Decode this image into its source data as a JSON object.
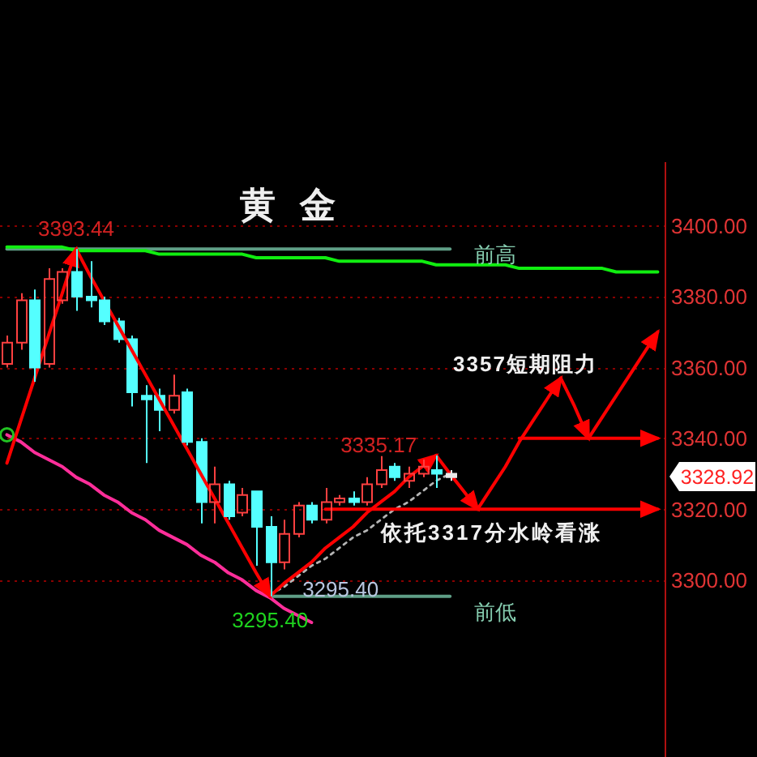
{
  "chart_data": {
    "type": "candlestick",
    "title": "黄金",
    "categories": [
      null,
      null,
      null,
      null,
      null,
      null,
      null,
      null,
      null,
      null,
      null,
      null,
      null,
      null,
      null,
      null,
      null,
      null,
      null,
      null,
      null,
      null,
      null,
      null,
      null,
      null,
      null,
      null,
      null,
      null,
      null,
      null,
      null,
      null,
      null,
      null,
      null,
      null,
      null,
      null,
      null,
      null,
      null,
      null,
      null,
      null,
      null,
      null
    ],
    "ohlc": [
      [
        3361,
        3369,
        3360,
        3367
      ],
      [
        3367,
        3381,
        3365,
        3379
      ],
      [
        3379,
        3382,
        3356,
        3360
      ],
      [
        3361,
        3388,
        3360,
        3385
      ],
      [
        3379,
        3388,
        3378,
        3387
      ],
      [
        3387,
        3393.44,
        3376,
        3380
      ],
      [
        3380,
        3390,
        3377,
        3379
      ],
      [
        3379,
        3380,
        3372,
        3373
      ],
      [
        3373,
        3374,
        3367,
        3368
      ],
      [
        3368,
        3369,
        3349,
        3353
      ],
      [
        3352,
        3355,
        3333,
        3351
      ],
      [
        3352,
        3354,
        3342,
        3348
      ],
      [
        3348,
        3358,
        3347,
        3352
      ],
      [
        3353,
        3354,
        3338,
        3339
      ],
      [
        3339,
        3340,
        3316,
        3322
      ],
      [
        3322,
        3332,
        3316,
        3327
      ],
      [
        3327,
        3328,
        3317,
        3318
      ],
      [
        3319,
        3326,
        3318,
        3324
      ],
      [
        3325,
        3325,
        3304,
        3315
      ],
      [
        3315,
        3318,
        3295.4,
        3305
      ],
      [
        3305,
        3317,
        3303,
        3313
      ],
      [
        3313,
        3322,
        3312,
        3321
      ],
      [
        3321,
        3322,
        3316,
        3317
      ],
      [
        3317,
        3326,
        3316,
        3322
      ],
      [
        3322,
        3324,
        3321,
        3323
      ],
      [
        3323,
        3325,
        3321,
        3322
      ],
      [
        3322,
        3329,
        3321,
        3327
      ],
      [
        3327,
        3335,
        3326,
        3331
      ],
      [
        3332,
        3333,
        3328,
        3329
      ],
      [
        3328,
        3332,
        3326,
        3330
      ],
      [
        3330,
        3334,
        3329,
        3332
      ],
      [
        3331,
        3335.17,
        3326,
        3330
      ],
      [
        3330,
        3331,
        3328,
        3329
      ],
      null,
      null,
      null,
      null,
      null,
      null,
      null,
      null,
      null,
      null,
      null,
      null,
      null,
      null,
      null
    ],
    "colors": [
      "#ff4040",
      "#ff4040",
      "#54ffff",
      "#ff4040",
      "#ff4040",
      "#54ffff",
      "#54ffff",
      "#54ffff",
      "#54ffff",
      "#54ffff",
      "#54ffff",
      "#54ffff",
      "#ff4040",
      "#54ffff",
      "#54ffff",
      "#ff4040",
      "#54ffff",
      "#ff4040",
      "#54ffff",
      "#54ffff",
      "#ff4040",
      "#ff4040",
      "#54ffff",
      "#ff4040",
      "#ff4040",
      "#54ffff",
      "#ff4040",
      "#ff4040",
      "#54ffff",
      "#ff4040",
      "#ff4040",
      "#54ffff",
      "#e8e8e8",
      null,
      null,
      null,
      null,
      null,
      null,
      null,
      null,
      null,
      null,
      null,
      null,
      null,
      null,
      null
    ],
    "series": [
      {
        "name": "前高",
        "type": "line",
        "color": "#5f9e86",
        "values": [
          3393.44,
          3393.44,
          3393.44,
          3393.44,
          3393.44,
          3393.44,
          3393.44,
          3393.44,
          3393.44,
          3393.44,
          3393.44,
          3393.44,
          3393.44,
          3393.44,
          3393.44,
          3393.44,
          3393.44,
          3393.44,
          3393.44,
          3393.44,
          3393.44,
          3393.44,
          3393.44,
          3393.44,
          3393.44,
          3393.44,
          3393.44,
          3393.44,
          3393.44,
          3393.44,
          3393.44,
          3393.44,
          3393.44,
          null,
          null,
          null,
          null,
          null,
          null,
          null,
          null,
          null,
          null,
          null,
          null,
          null,
          null,
          null
        ]
      },
      {
        "name": "前低",
        "type": "line",
        "color": "#5f9e86",
        "values": [
          null,
          null,
          null,
          null,
          null,
          null,
          null,
          null,
          null,
          null,
          null,
          null,
          null,
          null,
          null,
          null,
          null,
          null,
          null,
          3295.4,
          3295.4,
          3295.4,
          3295.4,
          3295.4,
          3295.4,
          3295.4,
          3295.4,
          3295.4,
          3295.4,
          3295.4,
          3295.4,
          3295.4,
          3295.4,
          null,
          null,
          null,
          null,
          null,
          null,
          null,
          null,
          null,
          null,
          null,
          null,
          null,
          null,
          null
        ]
      },
      {
        "type": "line",
        "color": "#10ee10",
        "values": [
          3394,
          3394,
          3394,
          3394,
          3394,
          3393,
          3393,
          3393,
          3393,
          3393,
          3393,
          3392,
          3392,
          3392,
          3392,
          3392,
          3392,
          3392,
          3391,
          3391,
          3391,
          3391,
          3391,
          3391,
          3390,
          3390,
          3390,
          3390,
          3390,
          3390,
          3390,
          3389,
          3389,
          3389,
          3389,
          3389,
          3389,
          3388,
          3388,
          3388,
          3388,
          3388,
          3388,
          3388,
          3387,
          3387,
          3387,
          3387
        ]
      },
      {
        "type": "line",
        "color": "#ff2e9a",
        "values": [
          3341,
          3339,
          3336,
          3334,
          3332,
          3329,
          3327,
          3324,
          3322,
          3319,
          3317,
          3314,
          3312,
          3310,
          3307,
          3305,
          3302,
          3300,
          3297,
          3295,
          3292,
          3290,
          3288,
          null,
          null,
          null,
          null,
          null,
          null,
          null,
          null,
          null,
          null,
          null,
          null,
          null,
          null,
          null,
          null,
          null,
          null,
          null,
          null,
          null,
          null,
          null,
          null,
          null
        ]
      },
      {
        "type": "line",
        "color": "#b4b4b4",
        "line_style": "dotted",
        "values": [
          null,
          null,
          null,
          null,
          null,
          null,
          null,
          null,
          null,
          null,
          null,
          null,
          null,
          null,
          null,
          null,
          null,
          null,
          null,
          3296,
          3298,
          3301,
          3304,
          3306,
          3309,
          3312,
          3314,
          3317,
          3320,
          3322,
          3325,
          3328,
          3330,
          null,
          null,
          null,
          null,
          null,
          null,
          null,
          null,
          null,
          null,
          null,
          null,
          null,
          null,
          null
        ]
      },
      {
        "type": "line",
        "color": "#ff0000",
        "values": [
          3333,
          3345,
          3357,
          3369,
          3381,
          3393.44,
          null,
          null,
          null,
          null,
          null,
          null,
          null,
          null,
          null,
          null,
          null,
          null,
          null,
          null,
          null,
          null,
          null,
          null,
          null,
          null,
          null,
          null,
          null,
          null,
          null,
          null,
          null,
          null,
          null,
          null,
          null,
          null,
          null,
          null,
          null,
          null,
          null,
          null,
          null,
          null,
          null,
          null
        ]
      },
      {
        "type": "line",
        "color": "#ff0000",
        "values": [
          null,
          null,
          null,
          null,
          null,
          3393.44,
          3386,
          3379,
          3372,
          3365,
          3358,
          3351,
          3344,
          3337,
          3330,
          3323,
          3316,
          3309,
          3302,
          3295.4,
          null,
          null,
          null,
          null,
          null,
          null,
          null,
          null,
          null,
          null,
          null,
          null,
          null,
          null,
          null,
          null,
          null,
          null,
          null,
          null,
          null,
          null,
          null,
          null,
          null,
          null,
          null,
          null
        ]
      },
      {
        "type": "line",
        "color": "#ff0000",
        "values": [
          null,
          null,
          null,
          null,
          null,
          null,
          null,
          null,
          null,
          null,
          null,
          null,
          null,
          null,
          null,
          null,
          null,
          null,
          null,
          3295.4,
          3299,
          3302,
          3305,
          3309,
          3312,
          3315,
          3319,
          3322,
          3325,
          3329,
          3332,
          3335.17,
          null,
          null,
          null,
          null,
          null,
          null,
          null,
          null,
          null,
          null,
          null,
          null,
          null,
          null,
          null,
          null
        ]
      },
      {
        "type": "line",
        "color": "#ff0000",
        "values": [
          null,
          null,
          null,
          null,
          null,
          null,
          null,
          null,
          null,
          null,
          null,
          null,
          null,
          null,
          null,
          null,
          null,
          null,
          null,
          null,
          null,
          null,
          null,
          null,
          null,
          null,
          null,
          null,
          null,
          null,
          null,
          3335.17,
          3330,
          3325,
          3320,
          null,
          null,
          null,
          null,
          null,
          null,
          null,
          null,
          null,
          null,
          null,
          null,
          null
        ]
      },
      {
        "type": "line",
        "color": "#ff0000",
        "values": [
          null,
          null,
          null,
          null,
          null,
          null,
          null,
          null,
          null,
          null,
          null,
          null,
          null,
          null,
          null,
          null,
          null,
          null,
          null,
          null,
          null,
          null,
          null,
          null,
          null,
          null,
          null,
          null,
          null,
          null,
          null,
          null,
          null,
          null,
          3320,
          3326,
          3332,
          3339,
          3345,
          3351,
          3357,
          null,
          null,
          null,
          null,
          null,
          null,
          null
        ]
      },
      {
        "type": "line",
        "color": "#ff0000",
        "values": [
          null,
          null,
          null,
          null,
          null,
          null,
          null,
          null,
          null,
          null,
          null,
          null,
          null,
          null,
          null,
          null,
          null,
          null,
          null,
          null,
          null,
          null,
          null,
          null,
          null,
          null,
          null,
          null,
          null,
          null,
          null,
          null,
          null,
          null,
          null,
          null,
          null,
          null,
          null,
          null,
          3357,
          3349,
          3340,
          null,
          null,
          null,
          null,
          null
        ]
      },
      {
        "type": "line",
        "color": "#ff0000",
        "values": [
          null,
          null,
          null,
          null,
          null,
          null,
          null,
          null,
          null,
          null,
          null,
          null,
          null,
          null,
          null,
          null,
          null,
          null,
          null,
          null,
          null,
          null,
          null,
          null,
          null,
          null,
          null,
          null,
          null,
          null,
          null,
          null,
          null,
          null,
          null,
          null,
          null,
          null,
          null,
          null,
          null,
          null,
          3340,
          3346,
          3352,
          3358,
          3364,
          3370
        ]
      },
      {
        "type": "line",
        "color": "#ff0000",
        "values": [
          null,
          null,
          null,
          null,
          null,
          null,
          null,
          null,
          null,
          null,
          null,
          null,
          null,
          null,
          null,
          null,
          null,
          null,
          null,
          null,
          null,
          null,
          null,
          null,
          null,
          null,
          null,
          null,
          null,
          null,
          null,
          null,
          null,
          null,
          null,
          null,
          null,
          3340,
          3340,
          3340,
          3340,
          3340,
          3340,
          3340,
          3340,
          3340,
          3340,
          3340
        ]
      },
      {
        "type": "line",
        "color": "#ff0000",
        "values": [
          null,
          null,
          null,
          null,
          null,
          null,
          null,
          null,
          null,
          null,
          null,
          null,
          null,
          null,
          null,
          null,
          null,
          null,
          null,
          null,
          null,
          null,
          null,
          3320,
          3320,
          3320,
          3320,
          3320,
          3320,
          3320,
          3320,
          3320,
          3320,
          3320,
          3320,
          3320,
          3320,
          3320,
          3320,
          3320,
          3320,
          3320,
          3320,
          3320,
          3320,
          3320,
          3320,
          3320
        ]
      }
    ],
    "ylim": [
      3250,
      3418
    ],
    "yticks": [
      {
        "value": 3300,
        "label": "3300.00"
      },
      {
        "value": 3320,
        "label": "3320.00"
      },
      {
        "value": 3340,
        "label": "3340.00"
      },
      {
        "value": 3360,
        "label": "3360.00"
      },
      {
        "value": 3380,
        "label": "3380.00"
      },
      {
        "value": 3400,
        "label": "3400.00"
      }
    ],
    "grid": "y",
    "tick_labels": "y",
    "annotations": [
      {
        "text": "3393.44",
        "y": 3393.44
      },
      {
        "text": "3295.40",
        "y": 3295.4
      },
      {
        "text": "3295.40",
        "y": 3295.4
      },
      {
        "text": "3335.17",
        "y": 3335.17
      },
      "3357短期阻力",
      "依托3317分水岭看涨",
      "3328.92"
    ]
  }
}
